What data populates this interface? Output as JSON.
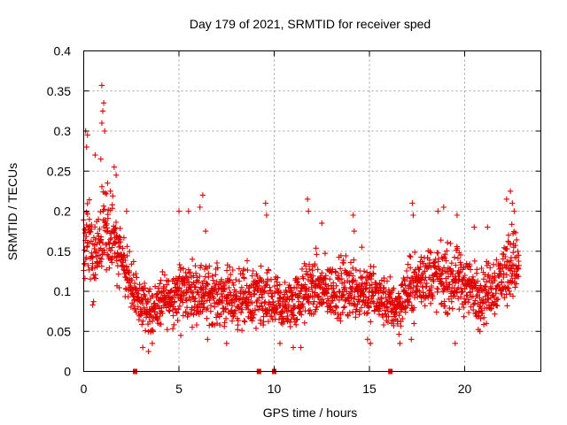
{
  "chart_data": {
    "type": "scatter",
    "title": "Day 179 of 2021, SRMTID for receiver sped",
    "xlabel": "GPS time / hours",
    "ylabel": "SRMTID / TECUs",
    "xlim": [
      0,
      24
    ],
    "ylim": [
      0,
      0.4
    ],
    "x_ticks": [
      0,
      5,
      10,
      15,
      20
    ],
    "x_tick_labels": [
      "0",
      "5",
      "10",
      "15",
      "20"
    ],
    "y_ticks": [
      0,
      0.05,
      0.1,
      0.15,
      0.2,
      0.25,
      0.3,
      0.35,
      0.4
    ],
    "y_tick_labels": [
      "0",
      "0.05",
      "0.1",
      "0.15",
      "0.2",
      "0.25",
      "0.3",
      "0.35",
      "0.4"
    ],
    "grid": true,
    "marker": "plus",
    "color": "#e00000",
    "data_gap_markers_x": [
      2.7,
      9.2,
      10.0,
      16.1
    ],
    "series": [
      {
        "name": "SRMTID",
        "x_start": 0.0,
        "x_end": 22.85,
        "sample_x": [
          0.0,
          0.25,
          0.5,
          1.0,
          1.3,
          1.6,
          2.0,
          2.6,
          3.0,
          3.5,
          4.0,
          5.0,
          6.0,
          7.0,
          8.0,
          9.0,
          10.0,
          10.6,
          11.5,
          12.0,
          13.0,
          14.0,
          15.0,
          15.5,
          16.0,
          16.5,
          17.0,
          18.0,
          19.0,
          20.0,
          20.5,
          21.0,
          22.0,
          22.5,
          22.85
        ],
        "sample_y": [
          0.14,
          0.18,
          0.13,
          0.18,
          0.17,
          0.16,
          0.14,
          0.1,
          0.085,
          0.075,
          0.085,
          0.1,
          0.1,
          0.095,
          0.09,
          0.09,
          0.085,
          0.08,
          0.095,
          0.105,
          0.1,
          0.105,
          0.1,
          0.09,
          0.085,
          0.08,
          0.1,
          0.12,
          0.115,
          0.11,
          0.1,
          0.095,
          0.12,
          0.14,
          0.13
        ],
        "sample_spread": [
          0.05,
          0.07,
          0.05,
          0.05,
          0.05,
          0.05,
          0.04,
          0.04,
          0.035,
          0.03,
          0.035,
          0.04,
          0.04,
          0.04,
          0.04,
          0.045,
          0.04,
          0.035,
          0.04,
          0.045,
          0.04,
          0.045,
          0.04,
          0.035,
          0.035,
          0.035,
          0.04,
          0.045,
          0.045,
          0.045,
          0.04,
          0.04,
          0.045,
          0.05,
          0.04
        ],
        "points_per_hour": 90,
        "peaks": [
          {
            "x": 0.1,
            "y": 0.3
          },
          {
            "x": 0.2,
            "y": 0.295
          },
          {
            "x": 0.15,
            "y": 0.28
          },
          {
            "x": 0.6,
            "y": 0.27
          },
          {
            "x": 0.9,
            "y": 0.265
          },
          {
            "x": 0.95,
            "y": 0.31
          },
          {
            "x": 1.0,
            "y": 0.325
          },
          {
            "x": 1.05,
            "y": 0.335
          },
          {
            "x": 0.95,
            "y": 0.357
          },
          {
            "x": 1.1,
            "y": 0.3
          },
          {
            "x": 1.25,
            "y": 0.235
          },
          {
            "x": 1.6,
            "y": 0.255
          },
          {
            "x": 1.7,
            "y": 0.245
          },
          {
            "x": 1.4,
            "y": 0.225
          },
          {
            "x": 2.25,
            "y": 0.2
          },
          {
            "x": 5.0,
            "y": 0.2
          },
          {
            "x": 5.5,
            "y": 0.2
          },
          {
            "x": 6.1,
            "y": 0.205
          },
          {
            "x": 6.25,
            "y": 0.22
          },
          {
            "x": 6.4,
            "y": 0.175
          },
          {
            "x": 9.55,
            "y": 0.21
          },
          {
            "x": 9.6,
            "y": 0.195
          },
          {
            "x": 11.75,
            "y": 0.215
          },
          {
            "x": 11.8,
            "y": 0.2
          },
          {
            "x": 12.5,
            "y": 0.185
          },
          {
            "x": 14.15,
            "y": 0.195
          },
          {
            "x": 14.2,
            "y": 0.175
          },
          {
            "x": 14.6,
            "y": 0.155
          },
          {
            "x": 17.25,
            "y": 0.21
          },
          {
            "x": 17.3,
            "y": 0.195
          },
          {
            "x": 18.6,
            "y": 0.2
          },
          {
            "x": 18.9,
            "y": 0.205
          },
          {
            "x": 19.6,
            "y": 0.195
          },
          {
            "x": 20.5,
            "y": 0.18
          },
          {
            "x": 21.2,
            "y": 0.18
          },
          {
            "x": 22.2,
            "y": 0.215
          },
          {
            "x": 22.4,
            "y": 0.225
          },
          {
            "x": 22.5,
            "y": 0.21
          },
          {
            "x": 22.6,
            "y": 0.2
          },
          {
            "x": 22.3,
            "y": 0.17
          }
        ],
        "troughs": [
          {
            "x": 3.1,
            "y": 0.03
          },
          {
            "x": 3.4,
            "y": 0.025
          },
          {
            "x": 3.6,
            "y": 0.035
          },
          {
            "x": 5.1,
            "y": 0.045
          },
          {
            "x": 6.5,
            "y": 0.04
          },
          {
            "x": 7.5,
            "y": 0.035
          },
          {
            "x": 10.3,
            "y": 0.035
          },
          {
            "x": 11.0,
            "y": 0.03
          },
          {
            "x": 11.4,
            "y": 0.03
          },
          {
            "x": 14.9,
            "y": 0.04
          },
          {
            "x": 15.05,
            "y": 0.035
          },
          {
            "x": 16.6,
            "y": 0.035
          },
          {
            "x": 17.2,
            "y": 0.04
          },
          {
            "x": 19.5,
            "y": 0.035
          },
          {
            "x": 20.8,
            "y": 0.05
          }
        ]
      }
    ]
  }
}
